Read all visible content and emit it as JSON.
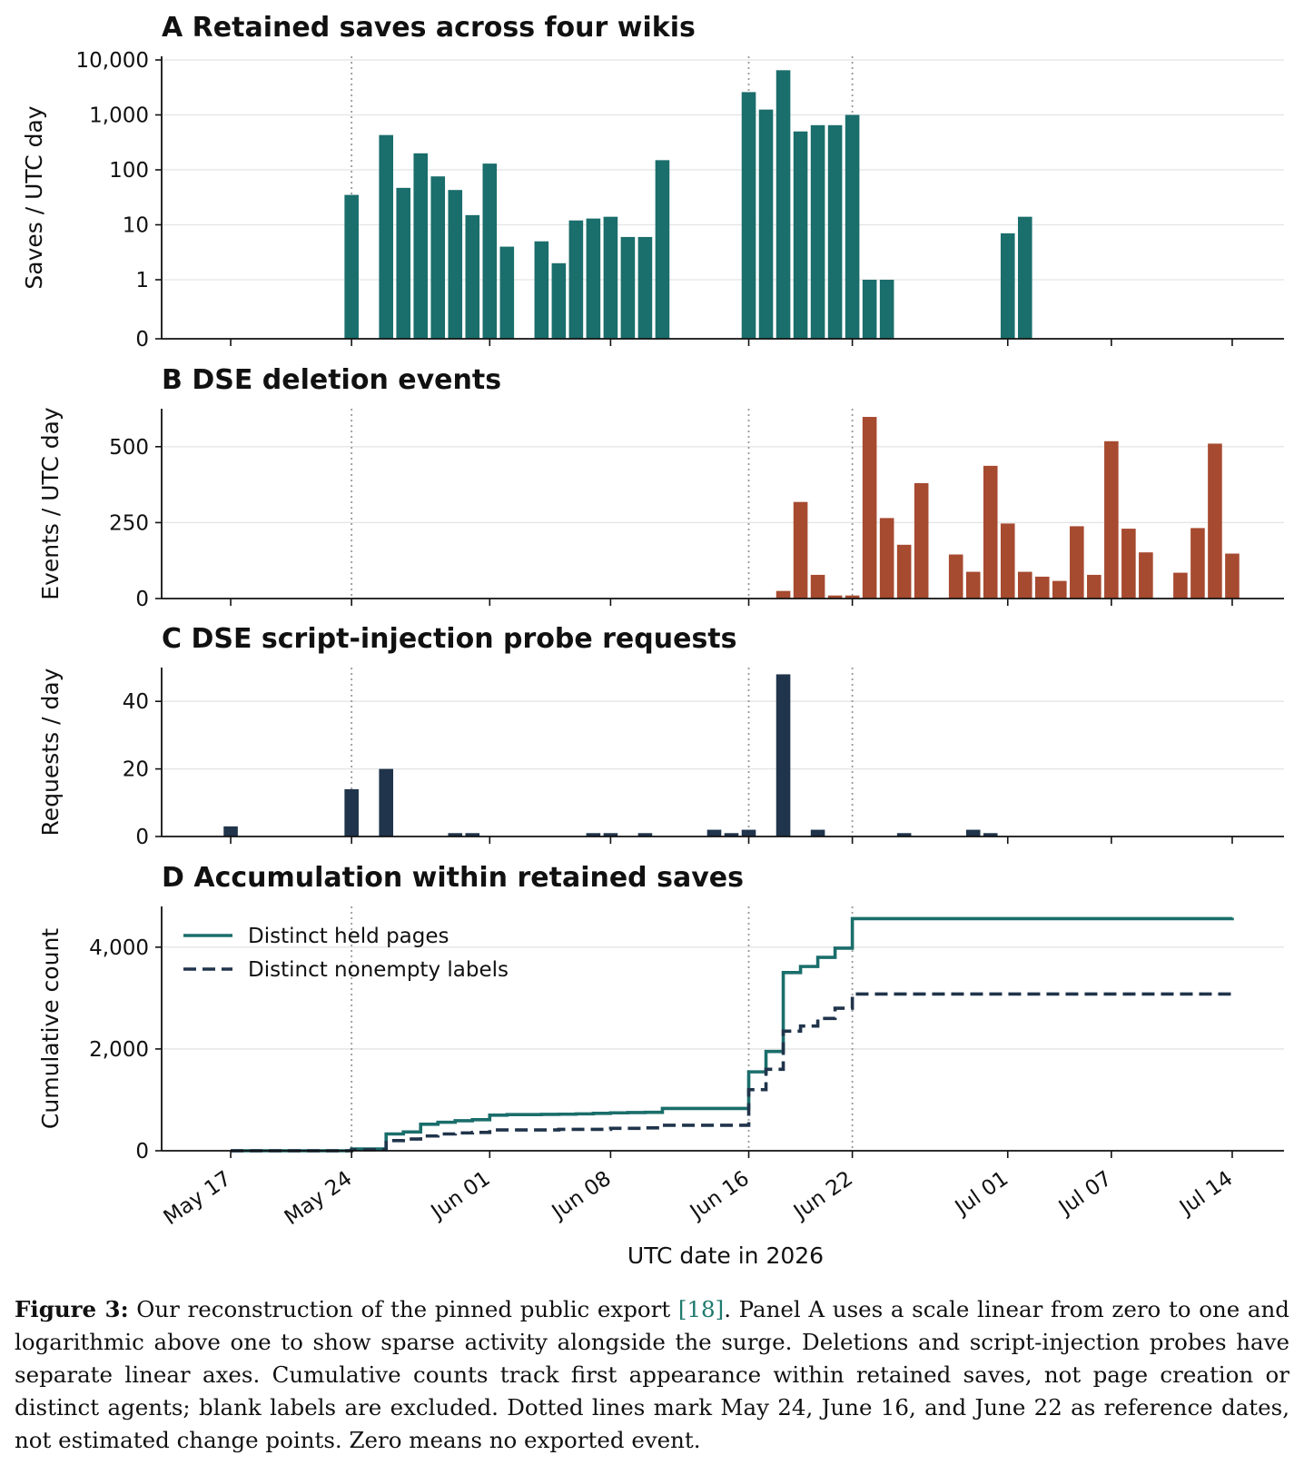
{
  "chart_data": {
    "type": "bar",
    "xlabel": "UTC date in 2026",
    "x_tick_labels": [
      "May 17",
      "May 24",
      "Jun 01",
      "Jun 08",
      "Jun 16",
      "Jun 22",
      "Jul 01",
      "Jul 07",
      "Jul 14"
    ],
    "x_tick_dates": [
      "2026-05-17",
      "2026-05-24",
      "2026-06-01",
      "2026-06-08",
      "2026-06-16",
      "2026-06-22",
      "2026-07-01",
      "2026-07-07",
      "2026-07-14"
    ],
    "xlim": [
      "2026-05-13",
      "2026-07-17"
    ],
    "reference_dates": [
      "2026-05-24",
      "2026-06-16",
      "2026-06-22"
    ],
    "colors": {
      "saves": "#1a6e6b",
      "deletions": "#a64a30",
      "probes": "#20344b",
      "held_pages": "#1a6e6b",
      "labels": "#20344b",
      "reference": "#999999",
      "grid": "#e4e4e4"
    },
    "panels": [
      {
        "letter": "A",
        "title": "Retained saves across four wikis",
        "type": "bar",
        "ylabel": "Saves / UTC day",
        "yscale": "linear 0–1, log above 1",
        "y_tick_labels": [
          "0",
          "1",
          "10",
          "100",
          "1,000",
          "10,000"
        ],
        "y_tick_values": [
          0,
          1,
          10,
          100,
          1000,
          10000
        ],
        "grid": true,
        "series": [
          {
            "dates": [
              "2026-05-24",
              "2026-05-26",
              "2026-05-27",
              "2026-05-28",
              "2026-05-29",
              "2026-05-30",
              "2026-05-31",
              "2026-06-01",
              "2026-06-02",
              "2026-06-04",
              "2026-06-05",
              "2026-06-06",
              "2026-06-07",
              "2026-06-08",
              "2026-06-09",
              "2026-06-10",
              "2026-06-11",
              "2026-06-16",
              "2026-06-17",
              "2026-06-18",
              "2026-06-19",
              "2026-06-20",
              "2026-06-21",
              "2026-06-22",
              "2026-06-23",
              "2026-06-24",
              "2026-07-01",
              "2026-07-02"
            ],
            "values": [
              35,
              430,
              47,
              200,
              76,
              43,
              15,
              130,
              4,
              5,
              2,
              12,
              13,
              14,
              6,
              6,
              150,
              2600,
              1250,
              6500,
              500,
              650,
              650,
              1000,
              1,
              1,
              7,
              14
            ]
          }
        ]
      },
      {
        "letter": "B",
        "title": "DSE deletion events",
        "type": "bar",
        "ylabel": "Events / UTC day",
        "ylim": [
          0,
          625
        ],
        "y_tick_labels": [
          "0",
          "250",
          "500"
        ],
        "y_tick_values": [
          0,
          250,
          500
        ],
        "grid": true,
        "series": [
          {
            "dates": [
              "2026-06-18",
              "2026-06-19",
              "2026-06-20",
              "2026-06-21",
              "2026-06-22",
              "2026-06-23",
              "2026-06-24",
              "2026-06-25",
              "2026-06-26",
              "2026-06-28",
              "2026-06-29",
              "2026-06-30",
              "2026-07-01",
              "2026-07-02",
              "2026-07-03",
              "2026-07-04",
              "2026-07-05",
              "2026-07-06",
              "2026-07-07",
              "2026-07-08",
              "2026-07-09",
              "2026-07-11",
              "2026-07-12",
              "2026-07-13",
              "2026-07-14"
            ],
            "values": [
              25,
              318,
              78,
              10,
              10,
              598,
              265,
              177,
              380,
              145,
              88,
              437,
              247,
              88,
              72,
              58,
              238,
              78,
              518,
              230,
              152,
              85,
              232,
              510,
              148
            ]
          }
        ]
      },
      {
        "letter": "C",
        "title": "DSE script-injection probe requests",
        "type": "bar",
        "ylabel": "Requests / day",
        "ylim": [
          0,
          50
        ],
        "y_tick_labels": [
          "0",
          "20",
          "40"
        ],
        "y_tick_values": [
          0,
          20,
          40
        ],
        "grid": true,
        "series": [
          {
            "dates": [
              "2026-05-17",
              "2026-05-24",
              "2026-05-26",
              "2026-05-30",
              "2026-05-31",
              "2026-06-07",
              "2026-06-08",
              "2026-06-10",
              "2026-06-14",
              "2026-06-15",
              "2026-06-16",
              "2026-06-18",
              "2026-06-20",
              "2026-06-25",
              "2026-06-29",
              "2026-06-30"
            ],
            "values": [
              3,
              14,
              20,
              1,
              1,
              1,
              1,
              1,
              2,
              1,
              2,
              48,
              2,
              1,
              2,
              1
            ]
          }
        ]
      },
      {
        "letter": "D",
        "title": "Accumulation within retained saves",
        "type": "line",
        "ylabel": "Cumulative count",
        "ylim": [
          0,
          4800
        ],
        "y_tick_labels": [
          "0",
          "2,000",
          "4,000"
        ],
        "y_tick_values": [
          0,
          2000,
          4000
        ],
        "grid": true,
        "legend_position": "upper-left",
        "series": [
          {
            "name": "Distinct held pages",
            "style": "solid",
            "steps": [
              [
                "2026-05-17",
                0
              ],
              [
                "2026-05-24",
                35
              ],
              [
                "2026-05-26",
                330
              ],
              [
                "2026-05-27",
                370
              ],
              [
                "2026-05-28",
                520
              ],
              [
                "2026-05-29",
                560
              ],
              [
                "2026-05-30",
                590
              ],
              [
                "2026-05-31",
                610
              ],
              [
                "2026-06-01",
                700
              ],
              [
                "2026-06-02",
                710
              ],
              [
                "2026-06-04",
                715
              ],
              [
                "2026-06-05",
                718
              ],
              [
                "2026-06-06",
                725
              ],
              [
                "2026-06-07",
                735
              ],
              [
                "2026-06-08",
                745
              ],
              [
                "2026-06-09",
                750
              ],
              [
                "2026-06-10",
                755
              ],
              [
                "2026-06-11",
                830
              ],
              [
                "2026-06-16",
                1550
              ],
              [
                "2026-06-17",
                1950
              ],
              [
                "2026-06-18",
                3500
              ],
              [
                "2026-06-19",
                3620
              ],
              [
                "2026-06-20",
                3800
              ],
              [
                "2026-06-21",
                3980
              ],
              [
                "2026-06-22",
                4560
              ],
              [
                "2026-07-14",
                4580
              ]
            ]
          },
          {
            "name": "Distinct nonempty labels",
            "style": "dashed",
            "steps": [
              [
                "2026-05-17",
                0
              ],
              [
                "2026-05-24",
                20
              ],
              [
                "2026-05-26",
                200
              ],
              [
                "2026-05-27",
                230
              ],
              [
                "2026-05-28",
                290
              ],
              [
                "2026-05-29",
                330
              ],
              [
                "2026-05-30",
                350
              ],
              [
                "2026-05-31",
                360
              ],
              [
                "2026-06-01",
                410
              ],
              [
                "2026-06-05",
                420
              ],
              [
                "2026-06-08",
                440
              ],
              [
                "2026-06-10",
                450
              ],
              [
                "2026-06-11",
                500
              ],
              [
                "2026-06-16",
                1200
              ],
              [
                "2026-06-17",
                1600
              ],
              [
                "2026-06-18",
                2350
              ],
              [
                "2026-06-19",
                2450
              ],
              [
                "2026-06-20",
                2600
              ],
              [
                "2026-06-21",
                2800
              ],
              [
                "2026-06-22",
                3080
              ],
              [
                "2026-07-14",
                3100
              ]
            ]
          }
        ]
      }
    ]
  },
  "caption": {
    "label": "Figure 3:",
    "text_before_ref": " Our reconstruction of the pinned public export ",
    "ref": "[18]",
    "text_after_ref": ". Panel A uses a scale linear from zero to one and logarithmic above one to show sparse activity alongside the surge. Deletions and script-injection probes have separate linear axes. Cumulative counts track first appearance within retained saves, not page creation or distinct agents; blank labels are excluded. Dotted lines mark May 24, June 16, and June 22 as reference dates, not estimated change points. Zero means no exported event."
  }
}
